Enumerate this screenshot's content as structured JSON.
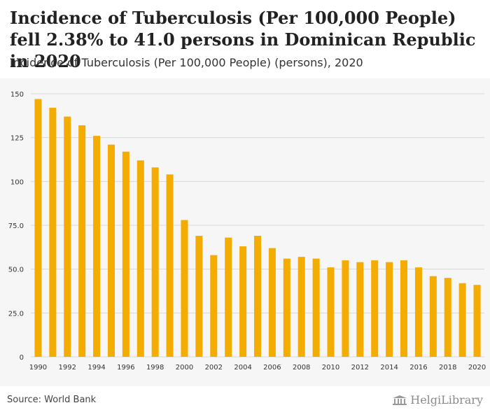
{
  "header": {
    "title": "Incidence of Tuberculosis (Per 100,000 People) fell 2.38% to 41.0 persons in Dominican Republic in 2020",
    "subtitle": "Incidence of Tuberculosis (Per 100,000 People) (persons), 2020"
  },
  "footer": {
    "source": "Source: World Bank",
    "brand": "HelgiLibrary",
    "brand_icon": "library-columns-icon"
  },
  "colors": {
    "bar": "#f5ac00",
    "grid": "#d9d9d9",
    "plot_bg": "#f6f6f6"
  },
  "chart_data": {
    "type": "bar",
    "categories": [
      "1990",
      "1991",
      "1992",
      "1993",
      "1994",
      "1995",
      "1996",
      "1997",
      "1998",
      "1999",
      "2000",
      "2001",
      "2002",
      "2003",
      "2004",
      "2005",
      "2006",
      "2007",
      "2008",
      "2009",
      "2010",
      "2011",
      "2012",
      "2013",
      "2014",
      "2015",
      "2016",
      "2017",
      "2018",
      "2019",
      "2020"
    ],
    "values": [
      147,
      142,
      137,
      132,
      126,
      121,
      117,
      112,
      108,
      104,
      78,
      69,
      58,
      68,
      63,
      69,
      62,
      56,
      57,
      56,
      51,
      55,
      54,
      55,
      54,
      55,
      51,
      46,
      45,
      42,
      41
    ],
    "x_tick_labels": [
      "1990",
      "1992",
      "1994",
      "1996",
      "1998",
      "2000",
      "2002",
      "2004",
      "2006",
      "2008",
      "2010",
      "2012",
      "2014",
      "2016",
      "2018",
      "2020"
    ],
    "y_ticks": [
      0,
      25,
      50,
      75,
      100,
      125,
      150
    ],
    "y_tick_labels": [
      "0",
      "25.0",
      "50.0",
      "75.0",
      "100",
      "125",
      "150"
    ],
    "ylim": [
      0,
      150
    ],
    "grid": true,
    "xlabel": "",
    "ylabel": ""
  }
}
